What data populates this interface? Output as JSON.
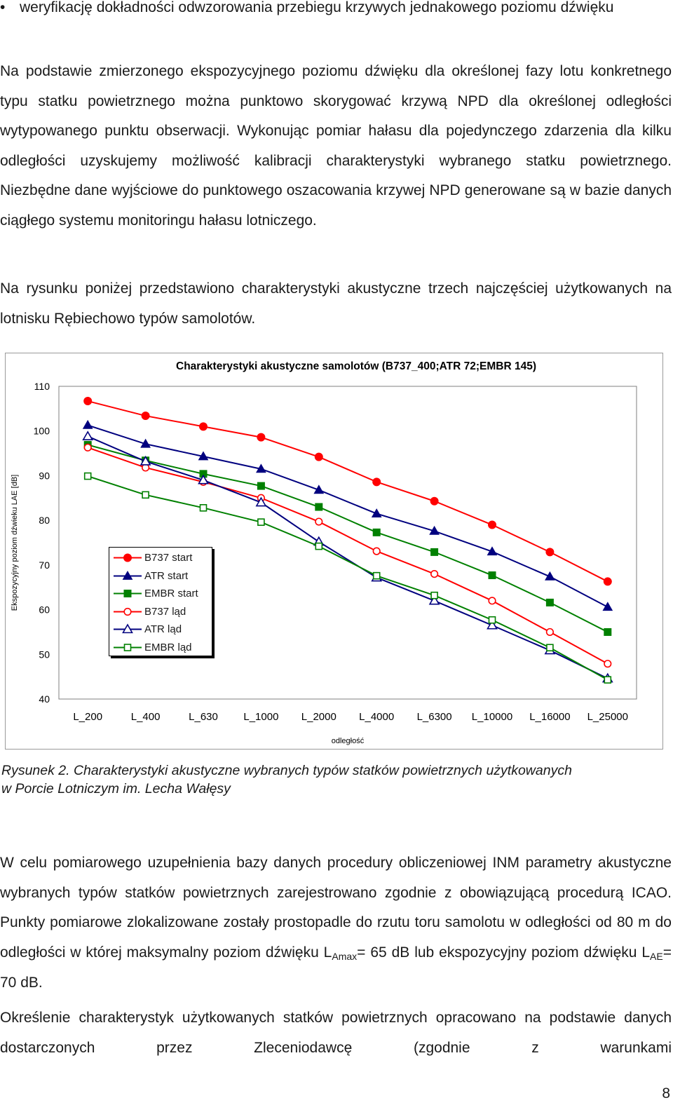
{
  "bullet": {
    "symbol": "•",
    "text": "weryfikację dokładności odwzorowania przebiegu krzywych jednakowego poziomu dźwięku"
  },
  "paragraphs": [
    "Na podstawie zmierzonego ekspozycyjnego poziomu dźwięku dla określonej fazy lotu konkretnego typu statku powietrznego można punktowo skorygować krzywą NPD dla określonej odległości wytypowanego punktu obserwacji. Wykonując pomiar hałasu dla pojedynczego zdarzenia dla kilku odległości uzyskujemy możliwość kalibracji charakterystyki wybranego statku powietrznego. Niezbędne dane wyjściowe do punktowego oszacowania krzywej NPD generowane są w bazie danych ciągłego systemu monitoringu hałasu lotniczego.",
    "Na rysunku poniżej przedstawiono charakterystyki akustyczne trzech najczęściej użytkowanych na lotnisku Rębiechowo typów samolotów."
  ],
  "caption": {
    "line1": "Rysunek 2. Charakterystyki akustyczne wybranych typów statków powietrznych użytkowanych",
    "line2": "w Porcie Lotniczym im. Lecha Wałęsy"
  },
  "paragraph3": {
    "part1": "W celu pomiarowego uzupełnienia bazy danych procedury obliczeniowej INM parametry akustyczne wybranych typów statków powietrznych zarejestrowano zgodnie z obowiązującą procedurą ICAO. Punkty pomiarowe zlokalizowane zostały prostopadle do rzutu toru samolotu w odległości od 80 m do odległości w której maksymalny poziom dźwięku L",
    "sub1": "Amax",
    "part2": "= 65 dB lub ekspozycyjny poziom dźwięku L",
    "sub2": "AE",
    "part3": "= 70 dB."
  },
  "paragraph4": "Określenie charakterystyk użytkowanych statków powietrznych opracowano na podstawie danych dostarczonych przez Zleceniodawcę (zgodnie z warunkami",
  "page_number": "8",
  "chart_data": {
    "type": "line",
    "title": "Charakterystyki akustyczne samolotów (B737_400;ATR 72;EMBR 145)",
    "xlabel": "odległość",
    "ylabel": "Ekspozycyjny poziom dźwieku LAE [dB]",
    "categories": [
      "L_200",
      "L_400",
      "L_630",
      "L_1000",
      "L_2000",
      "L_4000",
      "L_6300",
      "L_10000",
      "L_16000",
      "L_25000"
    ],
    "ylim": [
      40,
      110
    ],
    "yticks": [
      40,
      50,
      60,
      70,
      80,
      90,
      100,
      110
    ],
    "grid": false,
    "legend_placement": "inside-bottom-left",
    "series": [
      {
        "name": "B737 start",
        "color": "#ff0000",
        "marker": "circle",
        "filled": true,
        "values": [
          106.7,
          103.4,
          101.0,
          98.6,
          94.2,
          88.6,
          84.3,
          79.0,
          72.9,
          66.3
        ]
      },
      {
        "name": "ATR start",
        "color": "#00007f",
        "marker": "triangle",
        "filled": true,
        "values": [
          101.3,
          97.1,
          94.3,
          91.5,
          86.8,
          81.5,
          77.6,
          73.0,
          67.4,
          60.6
        ]
      },
      {
        "name": "EMBR start",
        "color": "#008000",
        "marker": "square",
        "filled": true,
        "values": [
          96.9,
          93.4,
          90.4,
          87.7,
          83.0,
          77.3,
          72.9,
          67.7,
          61.6,
          55.0
        ]
      },
      {
        "name": "B737 ląd",
        "color": "#ff0000",
        "marker": "circle",
        "filled": false,
        "values": [
          96.3,
          91.8,
          88.6,
          85.0,
          79.7,
          73.1,
          68.0,
          62.0,
          55.0,
          47.9
        ]
      },
      {
        "name": "ATR ląd",
        "color": "#00007f",
        "marker": "triangle",
        "filled": false,
        "values": [
          98.8,
          93.2,
          89.0,
          84.0,
          75.2,
          67.2,
          62.0,
          56.5,
          50.9,
          44.6
        ]
      },
      {
        "name": "EMBR ląd",
        "color": "#008000",
        "marker": "square",
        "filled": false,
        "values": [
          89.9,
          85.7,
          82.8,
          79.6,
          74.2,
          67.6,
          63.2,
          57.7,
          51.5,
          44.3
        ]
      }
    ]
  }
}
